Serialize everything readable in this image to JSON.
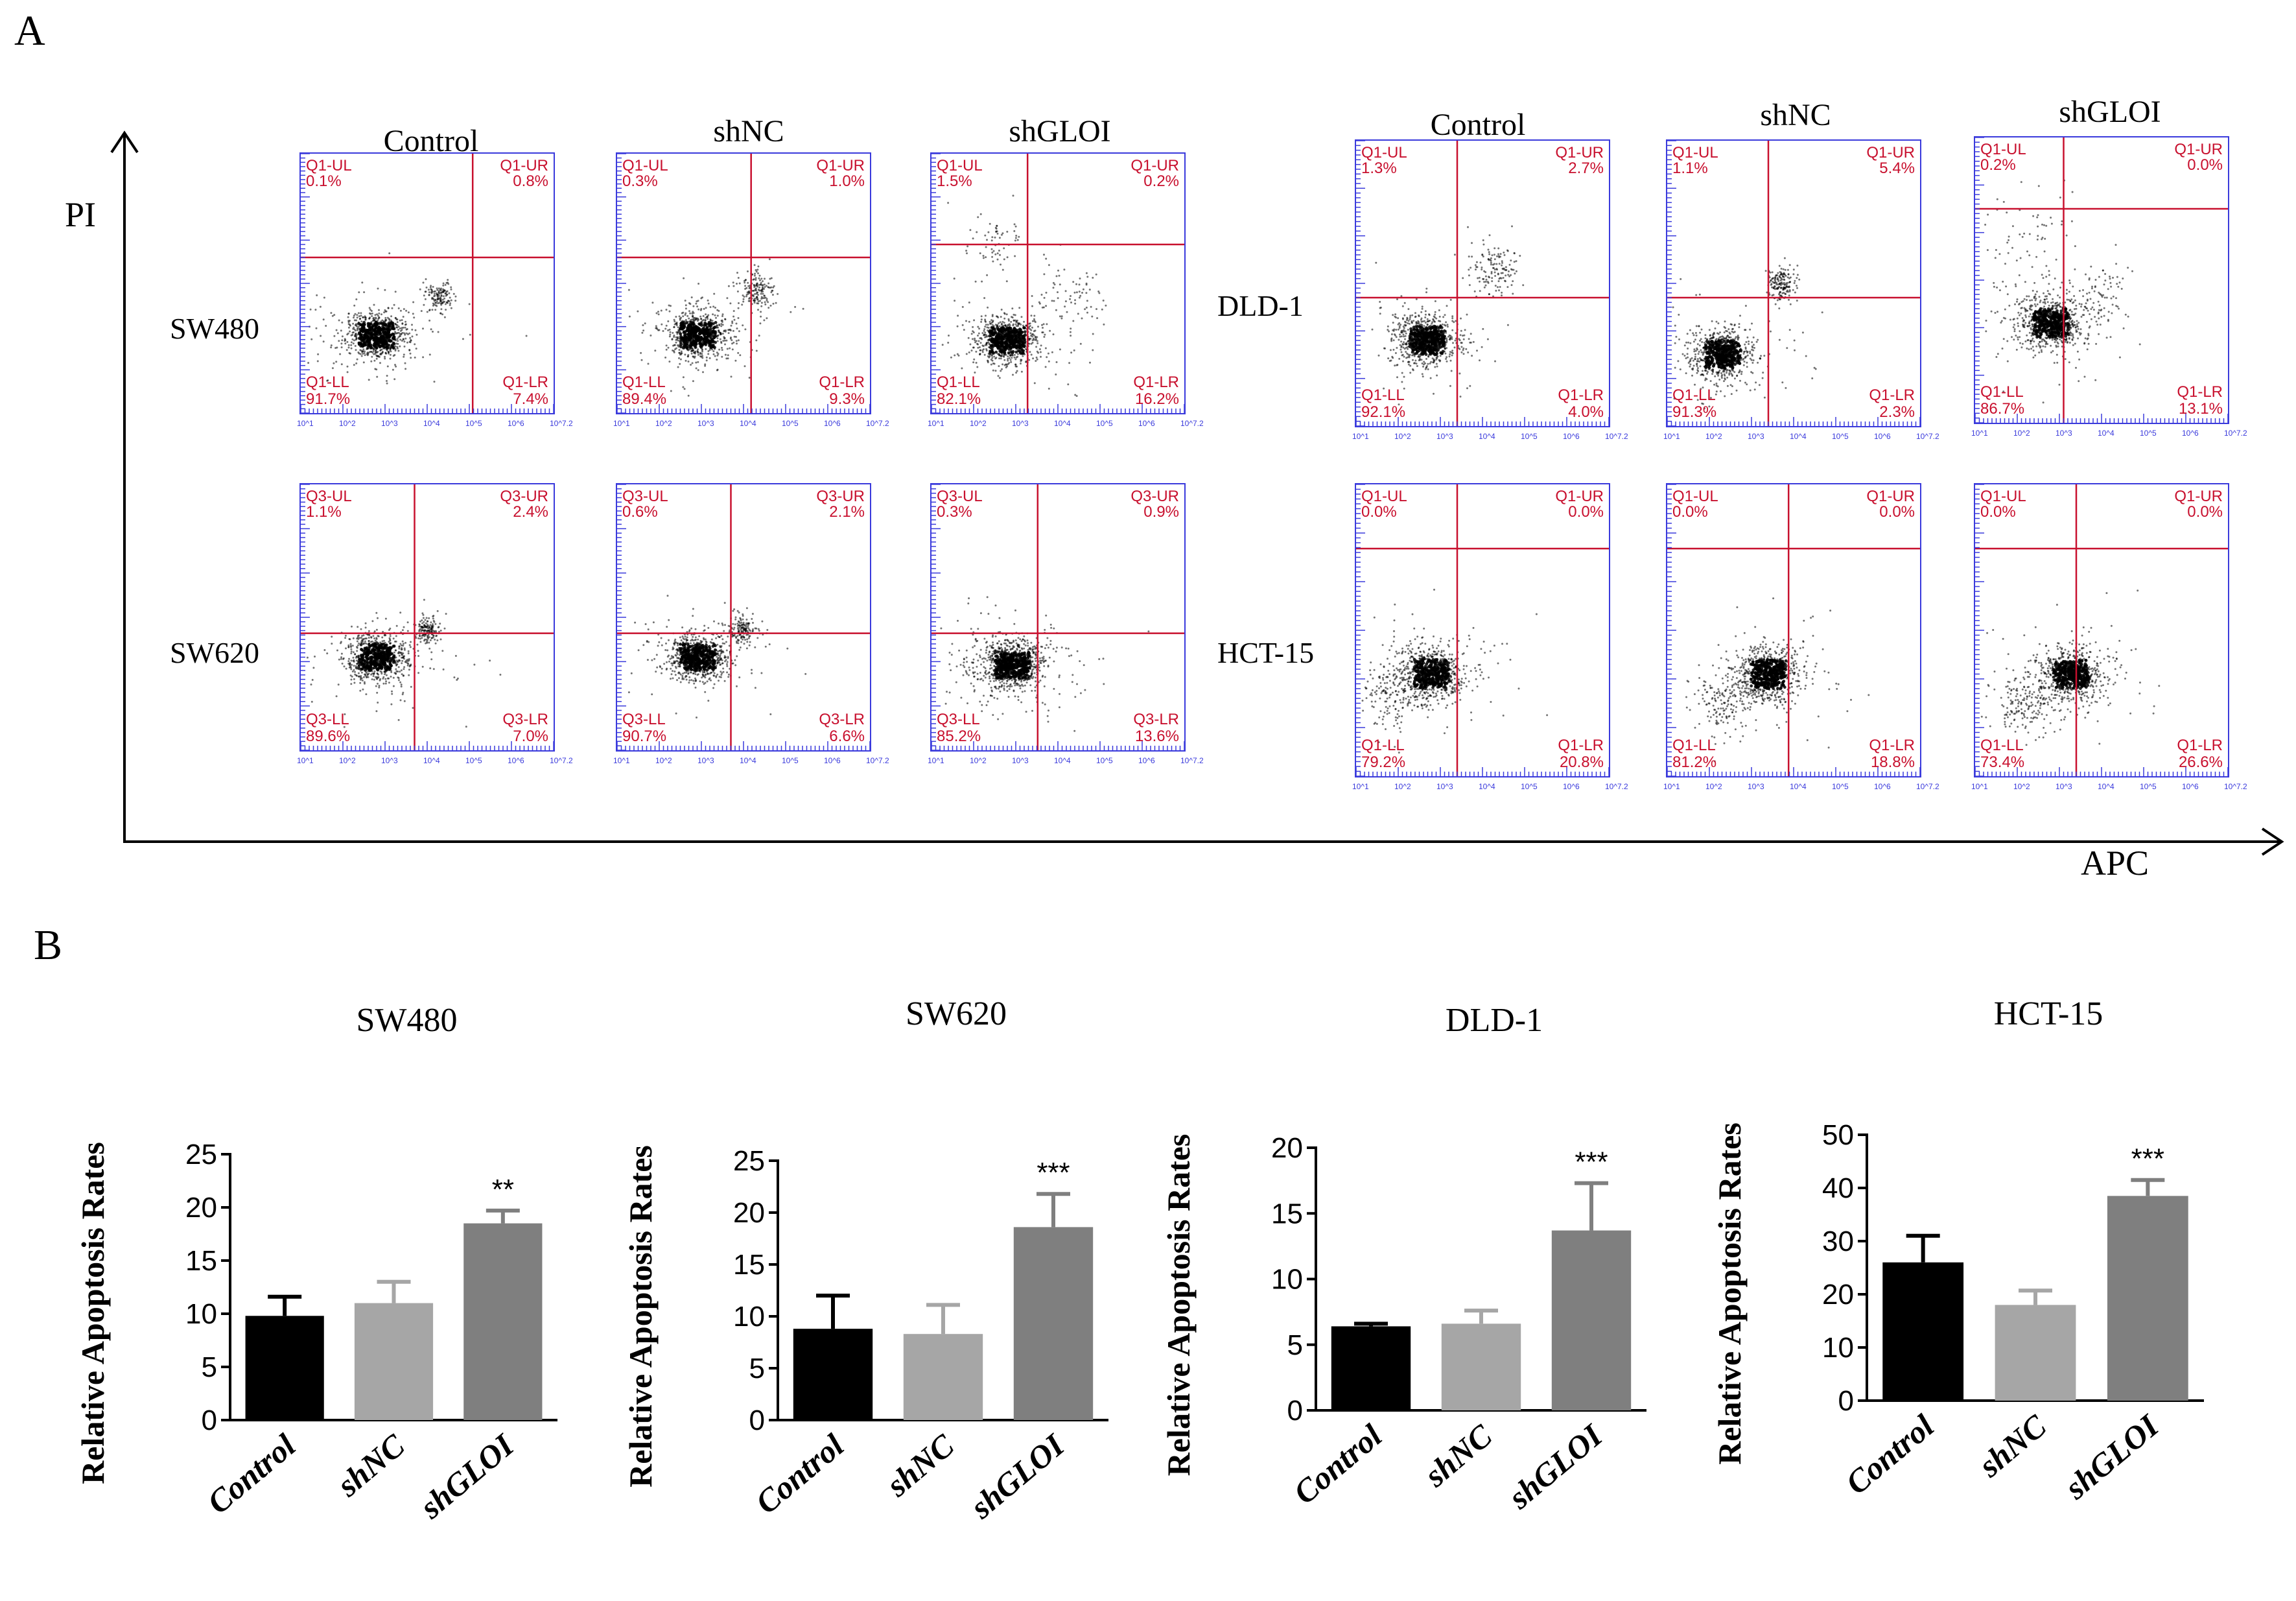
{
  "panel_a": {
    "label": "A",
    "y_axis": "PI",
    "x_axis": "APC",
    "left_columns": [
      "Control",
      "shNC",
      "shGLOI"
    ],
    "right_columns": [
      "Control",
      "shNC",
      "shGLOI"
    ],
    "cell_lines": [
      "SW480",
      "SW620",
      "DLD-1",
      "HCT-15"
    ],
    "plots": [
      {
        "cell_line": "SW480",
        "condition": "Control",
        "gate": "Q1",
        "UL": "0.1%",
        "UR": "0.8%",
        "LL": "91.7%",
        "LR": "7.4%"
      },
      {
        "cell_line": "SW480",
        "condition": "shNC",
        "gate": "Q1",
        "UL": "0.3%",
        "UR": "1.0%",
        "LL": "89.4%",
        "LR": "9.3%"
      },
      {
        "cell_line": "SW480",
        "condition": "shGLOI",
        "gate": "Q1",
        "UL": "1.5%",
        "UR": "0.2%",
        "LL": "82.1%",
        "LR": "16.2%"
      },
      {
        "cell_line": "DLD-1",
        "condition": "Control",
        "gate": "Q1",
        "UL": "1.3%",
        "UR": "2.7%",
        "LL": "92.1%",
        "LR": "4.0%"
      },
      {
        "cell_line": "DLD-1",
        "condition": "shNC",
        "gate": "Q1",
        "UL": "1.1%",
        "UR": "5.4%",
        "LL": "91.3%",
        "LR": "2.3%"
      },
      {
        "cell_line": "DLD-1",
        "condition": "shGLOI",
        "gate": "Q1",
        "UL": "0.2%",
        "UR": "0.0%",
        "LL": "86.7%",
        "LR": "13.1%"
      },
      {
        "cell_line": "SW620",
        "condition": "Control",
        "gate": "Q3",
        "UL": "1.1%",
        "UR": "2.4%",
        "LL": "89.6%",
        "LR": "7.0%"
      },
      {
        "cell_line": "SW620",
        "condition": "shNC",
        "gate": "Q3",
        "UL": "0.6%",
        "UR": "2.1%",
        "LL": "90.7%",
        "LR": "6.6%"
      },
      {
        "cell_line": "SW620",
        "condition": "shGLOI",
        "gate": "Q3",
        "UL": "0.3%",
        "UR": "0.9%",
        "LL": "85.2%",
        "LR": "13.6%"
      },
      {
        "cell_line": "HCT-15",
        "condition": "Control",
        "gate": "Q1",
        "UL": "0.0%",
        "UR": "0.0%",
        "LL": "79.2%",
        "LR": "20.8%"
      },
      {
        "cell_line": "HCT-15",
        "condition": "shNC",
        "gate": "Q1",
        "UL": "0.0%",
        "UR": "0.0%",
        "LL": "81.2%",
        "LR": "18.8%"
      },
      {
        "cell_line": "HCT-15",
        "condition": "shGLOI",
        "gate": "Q1",
        "UL": "0.0%",
        "UR": "0.0%",
        "LL": "73.4%",
        "LR": "26.6%"
      }
    ],
    "tick_labels": [
      "10^1",
      "10^2",
      "10^3",
      "10^4",
      "10^5",
      "10^6",
      "10^7.2"
    ]
  },
  "panel_b": {
    "label": "B"
  },
  "colors": {
    "gate": "#c8102e",
    "frame": "#3a3adc",
    "control": "#000000",
    "shNC": "#a6a6a6",
    "shGLOI": "#7f7f7f"
  },
  "chart_data": [
    {
      "type": "bar",
      "title": "SW480",
      "ylabel": "Relative Apoptosis Rates",
      "categories": [
        "Control",
        "shNC",
        "shGLOI"
      ],
      "values": [
        9.8,
        11.0,
        18.5
      ],
      "errors": [
        1.8,
        2.0,
        1.2
      ],
      "ylim": [
        0,
        25
      ],
      "yticks": [
        0,
        5,
        10,
        15,
        20,
        25
      ],
      "significance": [
        "",
        "",
        "**"
      ]
    },
    {
      "type": "bar",
      "title": "SW620",
      "ylabel": "Relative Apoptosis Rates",
      "categories": [
        "Control",
        "shNC",
        "shGLOI"
      ],
      "values": [
        8.8,
        8.3,
        18.6
      ],
      "errors": [
        3.2,
        2.8,
        3.2
      ],
      "ylim": [
        0,
        25
      ],
      "yticks": [
        0,
        5,
        10,
        15,
        20,
        25
      ],
      "significance": [
        "",
        "",
        "***"
      ]
    },
    {
      "type": "bar",
      "title": "DLD-1",
      "ylabel": "Relative Apoptosis Rates",
      "categories": [
        "Control",
        "shNC",
        "shGLOI"
      ],
      "values": [
        6.4,
        6.6,
        13.7
      ],
      "errors": [
        0.2,
        1.0,
        3.6
      ],
      "ylim": [
        0,
        20
      ],
      "yticks": [
        0,
        5,
        10,
        15,
        20
      ],
      "significance": [
        "",
        "",
        "***"
      ]
    },
    {
      "type": "bar",
      "title": "HCT-15",
      "ylabel": "Relative Apoptosis Rates",
      "categories": [
        "Control",
        "shNC",
        "shGLOI"
      ],
      "values": [
        26.0,
        18.0,
        38.5
      ],
      "errors": [
        5.0,
        2.7,
        3.0
      ],
      "ylim": [
        0,
        50
      ],
      "yticks": [
        0,
        10,
        20,
        30,
        40,
        50
      ],
      "significance": [
        "",
        "",
        "***"
      ]
    }
  ]
}
